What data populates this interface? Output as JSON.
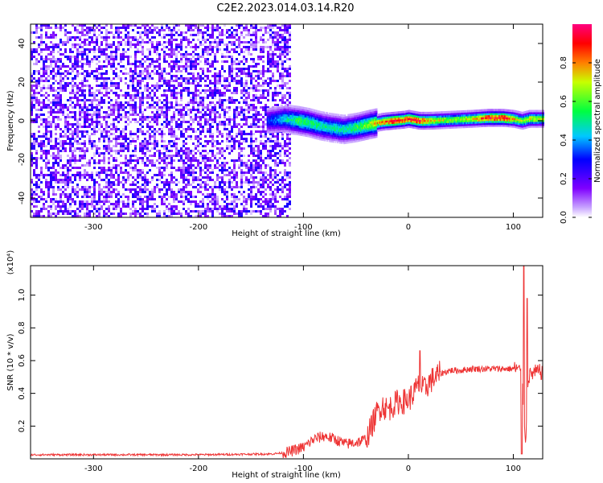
{
  "title": "C2E2.2023.014.03.14.R20",
  "chart_data": [
    {
      "type": "heatmap",
      "xlabel": "Height of straight line (km)",
      "ylabel": "Frequency (Hz)",
      "xlim": [
        -360,
        128
      ],
      "ylim": [
        -50,
        50
      ],
      "x_ticks": [
        -300,
        -200,
        -100,
        0,
        100
      ],
      "y_ticks": [
        -40,
        -20,
        0,
        20,
        40
      ],
      "colorbar": {
        "label": "Normalized spectral amplitude",
        "range": [
          0.0,
          1.0
        ],
        "ticks": [
          0.0,
          0.2,
          0.4,
          0.6,
          0.8
        ],
        "colors": [
          "#ffffff",
          "#8000ff",
          "#0000ff",
          "#00ffff",
          "#00ff00",
          "#ffff00",
          "#ff0000",
          "#ff0080"
        ]
      },
      "noise_region": {
        "x_range": [
          -360,
          -112
        ],
        "y_range": [
          -50,
          50
        ],
        "amplitude": 0.25
      },
      "ridge": [
        {
          "x": -135,
          "y": 0.0,
          "a": 0.3
        },
        {
          "x": -118,
          "y": 1.0,
          "a": 0.45
        },
        {
          "x": -105,
          "y": 0.0,
          "a": 0.55
        },
        {
          "x": -95,
          "y": -1.0,
          "a": 0.55
        },
        {
          "x": -85,
          "y": -2.5,
          "a": 0.5
        },
        {
          "x": -75,
          "y": -3.5,
          "a": 0.5
        },
        {
          "x": -62,
          "y": -4.5,
          "a": 0.5
        },
        {
          "x": -50,
          "y": -3.5,
          "a": 0.55
        },
        {
          "x": -38,
          "y": -2.0,
          "a": 0.65
        },
        {
          "x": -25,
          "y": -0.5,
          "a": 0.8
        },
        {
          "x": -15,
          "y": 0.0,
          "a": 0.95
        },
        {
          "x": -5,
          "y": 0.5,
          "a": 0.85
        },
        {
          "x": 0,
          "y": 1.0,
          "a": 0.9
        },
        {
          "x": 10,
          "y": 0.0,
          "a": 0.9
        },
        {
          "x": 20,
          "y": 0.0,
          "a": 0.75
        },
        {
          "x": 40,
          "y": 0.5,
          "a": 0.65
        },
        {
          "x": 60,
          "y": 1.0,
          "a": 0.7
        },
        {
          "x": 75,
          "y": 1.5,
          "a": 0.9
        },
        {
          "x": 90,
          "y": 1.5,
          "a": 0.95
        },
        {
          "x": 100,
          "y": 1.0,
          "a": 0.75
        },
        {
          "x": 108,
          "y": 0.0,
          "a": 0.65
        },
        {
          "x": 115,
          "y": 1.0,
          "a": 0.7
        },
        {
          "x": 128,
          "y": 1.0,
          "a": 0.65
        }
      ]
    },
    {
      "type": "line",
      "xlabel": "Height of straight line (km)",
      "ylabel": "SNR (10 * v/v)",
      "multiplier": "(x10⁴)",
      "xlim": [
        -360,
        128
      ],
      "ylim": [
        0,
        1.18
      ],
      "x_ticks": [
        -300,
        -200,
        -100,
        0,
        100
      ],
      "y_ticks": [
        0.2,
        0.4,
        0.6,
        0.8,
        1.0
      ],
      "series": [
        {
          "color": "#ee3333",
          "x": [
            -360,
            -300,
            -200,
            -130,
            -115,
            -100,
            -90,
            -80,
            -70,
            -60,
            -50,
            -40,
            -35,
            -30,
            -25,
            -20,
            -10,
            -5,
            0,
            5,
            10,
            15,
            20,
            30,
            40,
            50,
            60,
            70,
            80,
            90,
            100,
            105,
            108,
            110,
            112,
            114,
            118,
            122,
            128
          ],
          "y": [
            0.025,
            0.025,
            0.025,
            0.03,
            0.04,
            0.07,
            0.12,
            0.14,
            0.12,
            0.09,
            0.1,
            0.12,
            0.2,
            0.28,
            0.33,
            0.3,
            0.35,
            0.35,
            0.36,
            0.4,
            0.45,
            0.42,
            0.47,
            0.52,
            0.54,
            0.54,
            0.55,
            0.55,
            0.55,
            0.55,
            0.55,
            0.55,
            0.5,
            0.3,
            0.1,
            0.5,
            0.52,
            0.53,
            0.53
          ]
        }
      ],
      "annotations": [
        {
          "x": 110,
          "y": 1.18
        },
        {
          "x": 113,
          "y": 0.98
        },
        {
          "x": 11,
          "y": 0.66
        },
        {
          "x": 108,
          "y": 0.03
        }
      ]
    }
  ]
}
